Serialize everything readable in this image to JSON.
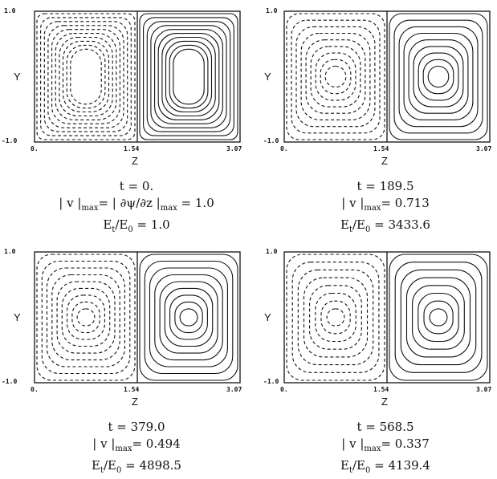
{
  "figure": {
    "tick_labels": {
      "y_top": "1.0",
      "y_bottom": "-1.0",
      "x_left": "0.",
      "x_mid": "1.54",
      "x_right": "3.07"
    },
    "y_axis_label": "Y",
    "x_axis_label": "Z",
    "panels": [
      {
        "time": "t  =   0.",
        "velocity": "| v |max= | ∂ψ/∂z |max =   1.0",
        "energy": "Et/E0  =    1.0"
      },
      {
        "time": "t = 189.5",
        "velocity": "| v |max=  0.713",
        "energy": "Et/E0  = 3433.6"
      },
      {
        "time": "t = 379.0",
        "velocity": "| v |max=  0.494",
        "energy": "Et/E0  = 4898.5"
      },
      {
        "time": "t = 568.5",
        "velocity": "| v |max=  0.337",
        "energy": "Et/E0  = 4139.4"
      }
    ],
    "contour_style": {
      "left_cell": "dashed",
      "right_cell": "solid",
      "line_color": "#111111"
    }
  }
}
